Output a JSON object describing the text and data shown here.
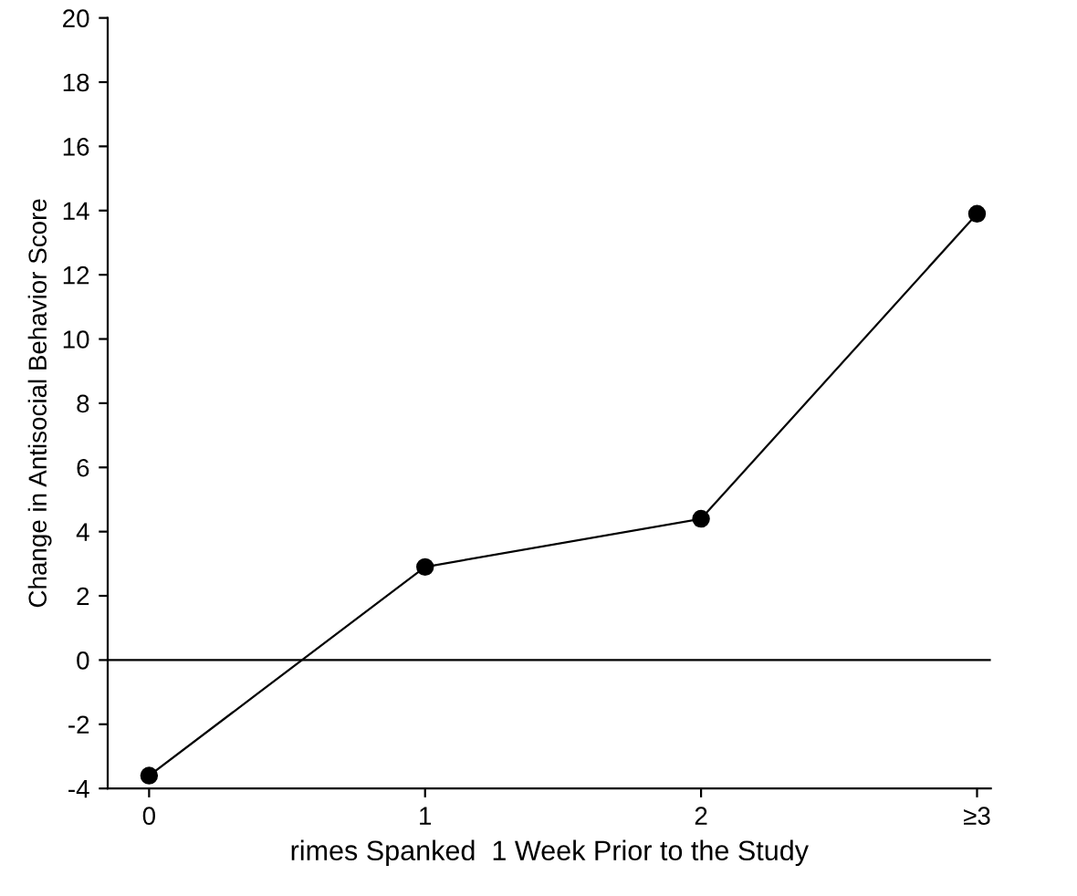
{
  "chart_data": {
    "type": "line",
    "xlabel": "rimes Spanked  1 Week Prior to the Study",
    "ylabel": "Change in Antisocial Behavior Score",
    "categories": [
      "0",
      "1",
      "2",
      "≥3"
    ],
    "series": [
      {
        "color": "#000000",
        "values": [
          -3.6,
          2.9,
          4.4,
          13.9
        ]
      }
    ],
    "ylim": [
      -4,
      20
    ],
    "yticks": [
      -4,
      -2,
      0,
      2,
      4,
      6,
      8,
      10,
      12,
      14,
      16,
      18,
      20
    ],
    "ref_lines": [
      {
        "axis": "y",
        "value": 0,
        "color": "#000000"
      }
    ],
    "marker": "circle",
    "line_style": "solid",
    "grid": false,
    "legend": false
  }
}
